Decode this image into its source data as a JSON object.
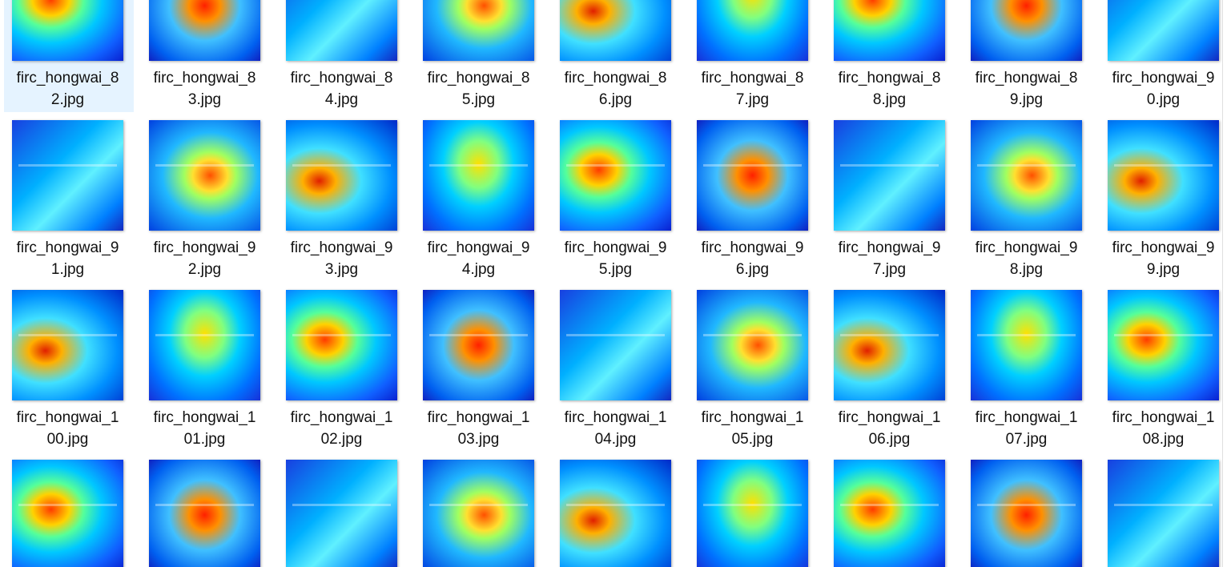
{
  "files": [
    "firc_hongwai_82.jpg",
    "firc_hongwai_83.jpg",
    "firc_hongwai_84.jpg",
    "firc_hongwai_85.jpg",
    "firc_hongwai_86.jpg",
    "firc_hongwai_87.jpg",
    "firc_hongwai_88.jpg",
    "firc_hongwai_89.jpg",
    "firc_hongwai_90.jpg",
    "firc_hongwai_91.jpg",
    "firc_hongwai_92.jpg",
    "firc_hongwai_93.jpg",
    "firc_hongwai_94.jpg",
    "firc_hongwai_95.jpg",
    "firc_hongwai_96.jpg",
    "firc_hongwai_97.jpg",
    "firc_hongwai_98.jpg",
    "firc_hongwai_99.jpg",
    "firc_hongwai_100.jpg",
    "firc_hongwai_101.jpg",
    "firc_hongwai_102.jpg",
    "firc_hongwai_103.jpg",
    "firc_hongwai_104.jpg",
    "firc_hongwai_105.jpg",
    "firc_hongwai_106.jpg",
    "firc_hongwai_107.jpg",
    "firc_hongwai_108.jpg"
  ]
}
